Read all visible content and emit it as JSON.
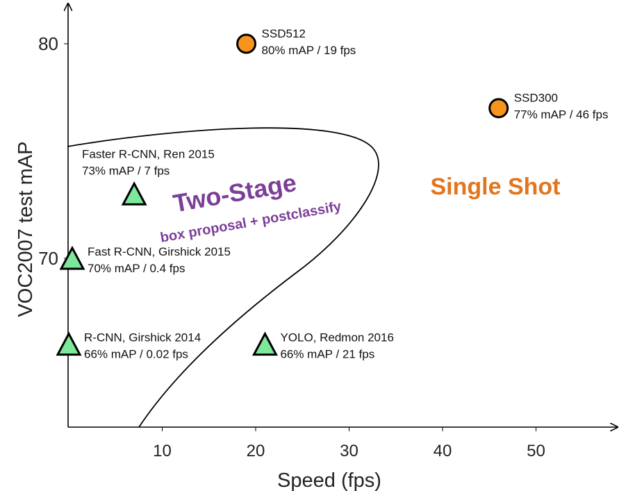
{
  "chart_data": {
    "type": "scatter",
    "xlabel": "Speed (fps)",
    "ylabel": "VOC2007 test mAP",
    "xticks": [
      10,
      20,
      30,
      40,
      50
    ],
    "yticks": [
      70,
      80
    ],
    "xlim": [
      0,
      58
    ],
    "ylim": [
      62,
      81.5
    ],
    "grid": false,
    "points": [
      {
        "name": "SSD512",
        "detail": "80% mAP / 19 fps",
        "x": 19,
        "y": 80,
        "group": "single",
        "marker": "circle"
      },
      {
        "name": "SSD300",
        "detail": "77% mAP / 46 fps",
        "x": 46,
        "y": 77,
        "group": "single",
        "marker": "circle"
      },
      {
        "name": "Faster R-CNN, Ren 2015",
        "detail": "73% mAP / 7 fps",
        "x": 7,
        "y": 73,
        "group": "two-stage",
        "marker": "triangle"
      },
      {
        "name": "Fast R-CNN, Girshick 2015",
        "detail": "70% mAP / 0.4 fps",
        "x": 0.4,
        "y": 70,
        "group": "two-stage",
        "marker": "triangle"
      },
      {
        "name": "R-CNN, Girshick 2014",
        "detail": "66% mAP / 0.02 fps",
        "x": 0.02,
        "y": 66,
        "group": "two-stage",
        "marker": "triangle"
      },
      {
        "name": "YOLO, Redmon 2016",
        "detail": "66% mAP / 21 fps",
        "x": 21,
        "y": 66,
        "group": "single",
        "marker": "triangle"
      }
    ],
    "annotations": {
      "two_stage": "Two-Stage",
      "two_stage_sub": "box proposal + postclassify",
      "single_shot": "Single Shot"
    },
    "colors": {
      "circle": "#f7941d",
      "triangle": "#7ee89a",
      "two_stage": "#7b3f98",
      "single_shot": "#e2761d"
    }
  }
}
